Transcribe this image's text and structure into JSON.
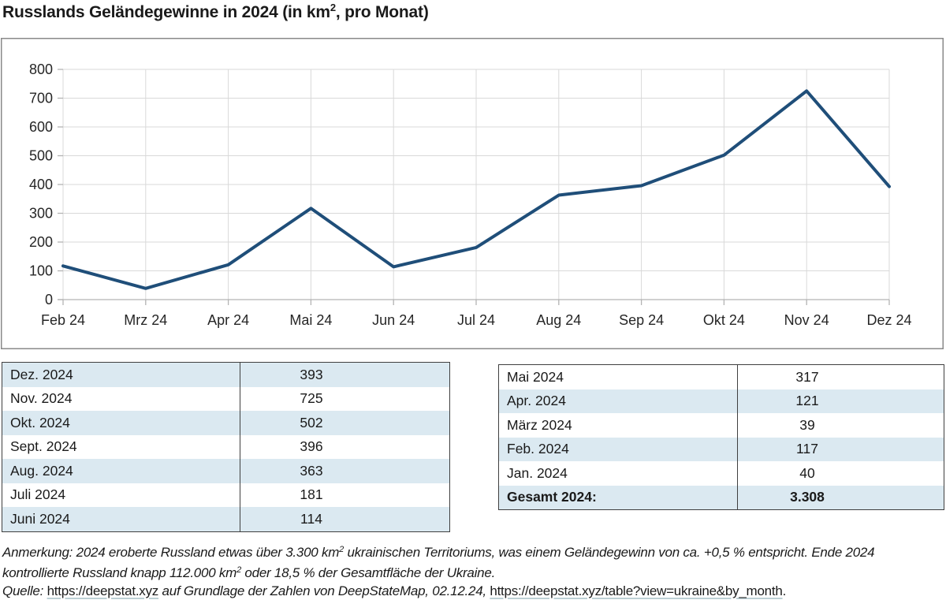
{
  "title": {
    "prefix": "Russlands Geländegewinne in 2024 (in km",
    "sup": "2",
    "suffix": ", pro Monat)"
  },
  "chart_data": {
    "type": "line",
    "title": "Russlands Geländegewinne in 2024 (in km², pro Monat)",
    "categories": [
      "Feb 24",
      "Mrz 24",
      "Apr 24",
      "Mai 24",
      "Jun 24",
      "Jul 24",
      "Aug 24",
      "Sep 24",
      "Okt 24",
      "Nov 24",
      "Dez 24"
    ],
    "values": [
      117,
      39,
      121,
      317,
      114,
      181,
      363,
      396,
      502,
      725,
      393
    ],
    "xlabel": "",
    "ylabel": "",
    "ylim": [
      0,
      800
    ],
    "ytick_step": 100,
    "grid": true,
    "legend": "none",
    "line_color": "#1F4E79"
  },
  "tables": {
    "left": {
      "band_offset": 0,
      "bold_last": false,
      "rows": [
        {
          "label": "Dez. 2024",
          "value": "393"
        },
        {
          "label": "Nov. 2024",
          "value": "725"
        },
        {
          "label": "Okt. 2024",
          "value": "502"
        },
        {
          "label": "Sept. 2024",
          "value": "396"
        },
        {
          "label": "Aug. 2024",
          "value": "363"
        },
        {
          "label": "Juli 2024",
          "value": "181"
        },
        {
          "label": "Juni 2024",
          "value": "114"
        }
      ]
    },
    "right": {
      "band_offset": 1,
      "bold_last": true,
      "rows": [
        {
          "label": "Mai 2024",
          "value": "317"
        },
        {
          "label": "Apr. 2024",
          "value": "121"
        },
        {
          "label": "März 2024",
          "value": "39"
        },
        {
          "label": "Feb. 2024",
          "value": "117"
        },
        {
          "label": "Jan. 2024",
          "value": "40"
        },
        {
          "label": "Gesamt 2024:",
          "value": "3.308"
        }
      ]
    }
  },
  "footnotes": {
    "lines": [
      [
        {
          "t": "Anmerkung: 2024 eroberte Russland etwas über 3.300 km",
          "s": "i"
        },
        {
          "t": "2",
          "s": "sup"
        },
        {
          "t": " ukrainischen Territoriums, was einem Geländegewinn von ca. +0,5 % entspricht. Ende 2024",
          "s": "i"
        }
      ],
      [
        {
          "t": "kontrollierte Russland knapp 112.000 km",
          "s": "i"
        },
        {
          "t": "2",
          "s": "sup"
        },
        {
          "t": " oder 18,5 % der Gesamtfläche der Ukraine.",
          "s": "i"
        }
      ],
      [
        {
          "t": "Quelle: ",
          "s": "i"
        },
        {
          "t": "https://deepstat.xyz",
          "s": "link"
        },
        {
          "t": " auf Grundlage der Zahlen von DeepStateMap, 02.12.24, ",
          "s": "i"
        },
        {
          "t": "https://deepstat.xyz/table?view=ukraine&by_month",
          "s": "link"
        },
        {
          "t": ".",
          "s": "r"
        }
      ]
    ]
  },
  "colors": {
    "line": "#1F4E79",
    "row_band": "#dbe9f1",
    "table_border": "#3f3f3f",
    "gridline": "#d9d9d9",
    "axis": "#b3b3b3",
    "chart_border": "#8a8a8a",
    "text": "#1a1a1a",
    "link_underline": "#bdd0d5"
  }
}
